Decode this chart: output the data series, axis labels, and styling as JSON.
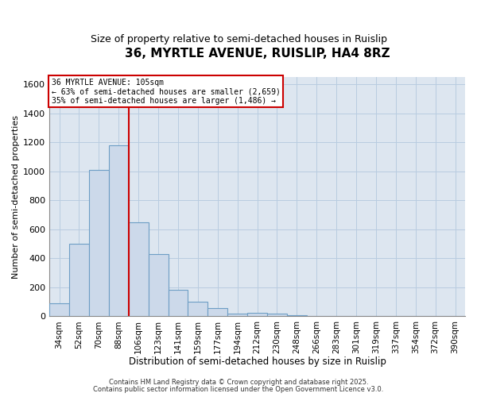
{
  "title1": "36, MYRTLE AVENUE, RUISLIP, HA4 8RZ",
  "title2": "Size of property relative to semi-detached houses in Ruislip",
  "xlabel": "Distribution of semi-detached houses by size in Ruislip",
  "ylabel": "Number of semi-detached properties",
  "bar_labels": [
    "34sqm",
    "52sqm",
    "70sqm",
    "88sqm",
    "106sqm",
    "123sqm",
    "141sqm",
    "159sqm",
    "177sqm",
    "194sqm",
    "212sqm",
    "230sqm",
    "248sqm",
    "266sqm",
    "283sqm",
    "301sqm",
    "319sqm",
    "337sqm",
    "354sqm",
    "372sqm",
    "390sqm"
  ],
  "bar_values": [
    90,
    500,
    1010,
    1180,
    650,
    430,
    185,
    100,
    55,
    20,
    25,
    20,
    10,
    0,
    0,
    0,
    0,
    0,
    0,
    0,
    0
  ],
  "bar_color": "#ccd9ea",
  "bar_edgecolor": "#6e9ec5",
  "grid_color": "#b8cce0",
  "bg_color": "#dde6f0",
  "vline_color": "#cc0000",
  "annotation_title": "36 MYRTLE AVENUE: 105sqm",
  "annotation_line1": "← 63% of semi-detached houses are smaller (2,659)",
  "annotation_line2": "35% of semi-detached houses are larger (1,486) →",
  "annotation_box_edgecolor": "#cc0000",
  "annotation_box_fill": "white",
  "footer1": "Contains HM Land Registry data © Crown copyright and database right 2025.",
  "footer2": "Contains public sector information licensed under the Open Government Licence v3.0.",
  "ylim": [
    0,
    1650
  ],
  "yticks": [
    0,
    200,
    400,
    600,
    800,
    1000,
    1200,
    1400,
    1600
  ]
}
